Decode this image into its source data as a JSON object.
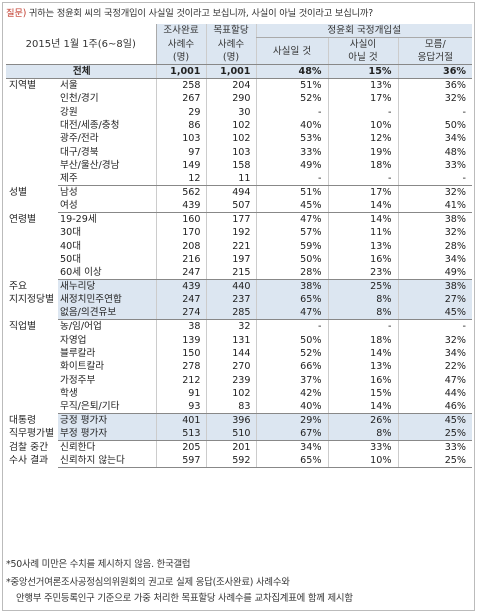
{
  "question": {
    "label": "질문)",
    "text": "귀하는 정윤회 씨의 국정개입이 사실일 것이라고 보십니까, 사실이 아닐 것이라고 보십니까?"
  },
  "header": {
    "date": "2015년 1월 1주(6~8일)",
    "col_survey_1": "조사완료",
    "col_survey_2": "사례수",
    "col_survey_3": "(명)",
    "col_target_1": "목표할당",
    "col_target_2": "사례수",
    "col_target_3": "(명)",
    "group": "정윤회 국정개입설",
    "col_true": "사실일 것",
    "col_false_1": "사실이",
    "col_false_2": "아닐 것",
    "col_dk_1": "모름/",
    "col_dk_2": "응답거절"
  },
  "total": {
    "label": "전체",
    "n1": "1,001",
    "n2": "1,001",
    "a": "48%",
    "b": "15%",
    "c": "36%"
  },
  "sections": [
    {
      "category": [
        "지역별"
      ],
      "rows": [
        {
          "label": "서울",
          "n1": "258",
          "n2": "204",
          "a": "51%",
          "b": "13%",
          "c": "36%"
        },
        {
          "label": "인천/경기",
          "n1": "267",
          "n2": "290",
          "a": "52%",
          "b": "17%",
          "c": "32%"
        },
        {
          "label": "강원",
          "n1": "29",
          "n2": "30",
          "a": "-",
          "b": "-",
          "c": "-"
        },
        {
          "label": "대전/세종/충청",
          "n1": "86",
          "n2": "102",
          "a": "40%",
          "b": "10%",
          "c": "50%"
        },
        {
          "label": "광주/전라",
          "n1": "103",
          "n2": "102",
          "a": "53%",
          "b": "12%",
          "c": "34%"
        },
        {
          "label": "대구/경북",
          "n1": "97",
          "n2": "103",
          "a": "33%",
          "b": "19%",
          "c": "48%"
        },
        {
          "label": "부산/울산/경남",
          "n1": "149",
          "n2": "158",
          "a": "49%",
          "b": "18%",
          "c": "33%"
        },
        {
          "label": "제주",
          "n1": "12",
          "n2": "11",
          "a": "-",
          "b": "-",
          "c": "-"
        }
      ]
    },
    {
      "category": [
        "성별"
      ],
      "rows": [
        {
          "label": "남성",
          "n1": "562",
          "n2": "494",
          "a": "51%",
          "b": "17%",
          "c": "32%"
        },
        {
          "label": "여성",
          "n1": "439",
          "n2": "507",
          "a": "45%",
          "b": "14%",
          "c": "41%"
        }
      ]
    },
    {
      "category": [
        "연령별"
      ],
      "rows": [
        {
          "label": "19-29세",
          "n1": "160",
          "n2": "177",
          "a": "47%",
          "b": "14%",
          "c": "38%"
        },
        {
          "label": "30대",
          "n1": "170",
          "n2": "192",
          "a": "57%",
          "b": "11%",
          "c": "32%"
        },
        {
          "label": "40대",
          "n1": "208",
          "n2": "221",
          "a": "59%",
          "b": "13%",
          "c": "28%"
        },
        {
          "label": "50대",
          "n1": "216",
          "n2": "197",
          "a": "50%",
          "b": "16%",
          "c": "34%"
        },
        {
          "label": "60세 이상",
          "n1": "247",
          "n2": "215",
          "a": "28%",
          "b": "23%",
          "c": "49%"
        }
      ]
    },
    {
      "category": [
        "주요",
        "지지정당별"
      ],
      "rows": [
        {
          "label": "새누리당",
          "n1": "439",
          "n2": "440",
          "a": "38%",
          "b": "25%",
          "c": "38%"
        },
        {
          "label": "새정치민주연합",
          "n1": "247",
          "n2": "237",
          "a": "65%",
          "b": "8%",
          "c": "27%"
        },
        {
          "label": "없음/의견유보",
          "n1": "274",
          "n2": "285",
          "a": "47%",
          "b": "8%",
          "c": "45%"
        }
      ]
    },
    {
      "category": [
        "직업별"
      ],
      "rows": [
        {
          "label": "농/임/어업",
          "n1": "38",
          "n2": "32",
          "a": "-",
          "b": "-",
          "c": "-"
        },
        {
          "label": "자영업",
          "n1": "139",
          "n2": "131",
          "a": "50%",
          "b": "18%",
          "c": "32%"
        },
        {
          "label": "블루칼라",
          "n1": "150",
          "n2": "144",
          "a": "52%",
          "b": "14%",
          "c": "34%"
        },
        {
          "label": "화이트칼라",
          "n1": "278",
          "n2": "270",
          "a": "66%",
          "b": "13%",
          "c": "22%"
        },
        {
          "label": "가정주부",
          "n1": "212",
          "n2": "239",
          "a": "37%",
          "b": "16%",
          "c": "47%"
        },
        {
          "label": "학생",
          "n1": "91",
          "n2": "102",
          "a": "42%",
          "b": "15%",
          "c": "44%"
        },
        {
          "label": "무직/은퇴/기타",
          "n1": "93",
          "n2": "83",
          "a": "40%",
          "b": "14%",
          "c": "46%"
        }
      ]
    },
    {
      "category": [
        "대통령",
        "직무평가별"
      ],
      "rows": [
        {
          "label": "긍정 평가자",
          "n1": "401",
          "n2": "396",
          "a": "29%",
          "b": "26%",
          "c": "45%"
        },
        {
          "label": "부정 평가자",
          "n1": "513",
          "n2": "510",
          "a": "67%",
          "b": "8%",
          "c": "25%"
        }
      ]
    },
    {
      "category": [
        "검찰 중간",
        "수사 결과"
      ],
      "rows": [
        {
          "label": "신뢰한다",
          "n1": "205",
          "n2": "201",
          "a": "34%",
          "b": "33%",
          "c": "33%"
        },
        {
          "label": "신뢰하지 않는다",
          "n1": "597",
          "n2": "592",
          "a": "65%",
          "b": "10%",
          "c": "25%"
        }
      ]
    }
  ],
  "notes": [
    "*50사례 미만은 수치를 제시하지 않음. 한국갤럽",
    "*중앙선거여론조사공정심의위원회의 권고로 실제 응답(조사완료) 사례수와",
    "안행부 주민등록인구 기준으로 가중 처리한 목표할당 사례수를 교차집계표에 함께 제시함"
  ]
}
